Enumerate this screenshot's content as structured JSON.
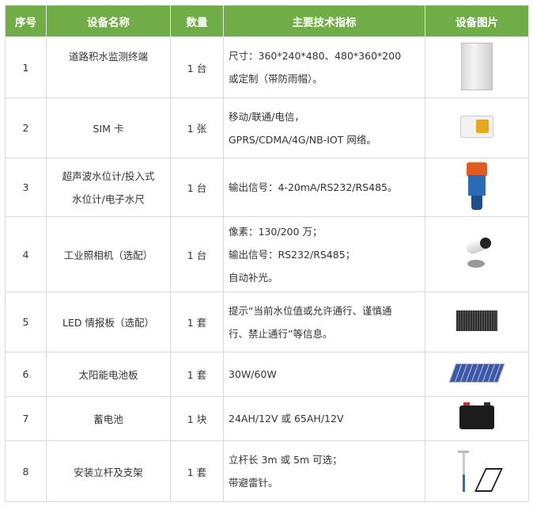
{
  "header": {
    "no": "序号",
    "name": "设备名称",
    "qty": "数量",
    "spec": "主要技术指标",
    "image": "设备图片"
  },
  "accent_color": "#70ad47",
  "rows": [
    {
      "no": "1",
      "name": "道路积水监测终端",
      "qty": "1 台",
      "spec": [
        "尺寸：360*240*480、480*360*200",
        "或定制（带防雨帽）。"
      ],
      "icon": "cabinet-image"
    },
    {
      "no": "2",
      "name": "SIM 卡",
      "qty": "1 张",
      "spec": [
        "移动/联通/电信，",
        "GPRS/CDMA/4G/NB-IOT 网络。"
      ],
      "icon": "sim-card-image"
    },
    {
      "no": "3",
      "name": [
        "超声波水位计/投入式",
        "水位计/电子水尺"
      ],
      "qty": "1 台",
      "spec": [
        "输出信号：4-20mA/RS232/RS485。"
      ],
      "icon": "water-level-sensor-image"
    },
    {
      "no": "4",
      "name": "工业照相机（选配）",
      "qty": "1 台",
      "spec": [
        "像素：130/200 万；",
        "输出信号：RS232/RS485；",
        "自动补光。"
      ],
      "icon": "camera-image"
    },
    {
      "no": "5",
      "name": "LED 情报板（选配）",
      "qty": "1 套",
      "spec": [
        "提示“当前水位值或允许通行、谨慎通",
        "行、禁止通行”等信息。"
      ],
      "icon": "led-board-image"
    },
    {
      "no": "6",
      "name": "太阳能电池板",
      "qty": "1 套",
      "spec": [
        "30W/60W"
      ],
      "icon": "solar-panel-image"
    },
    {
      "no": "7",
      "name": "蓄电池",
      "qty": "1 块",
      "spec": [
        "24AH/12V 或 65AH/12V"
      ],
      "icon": "battery-image"
    },
    {
      "no": "8",
      "name": "安装立杆及支架",
      "qty": "1 套",
      "spec": [
        "立杆长 3m 或 5m 可选；",
        "带避雷针。"
      ],
      "icon": "pole-bracket-image"
    }
  ]
}
